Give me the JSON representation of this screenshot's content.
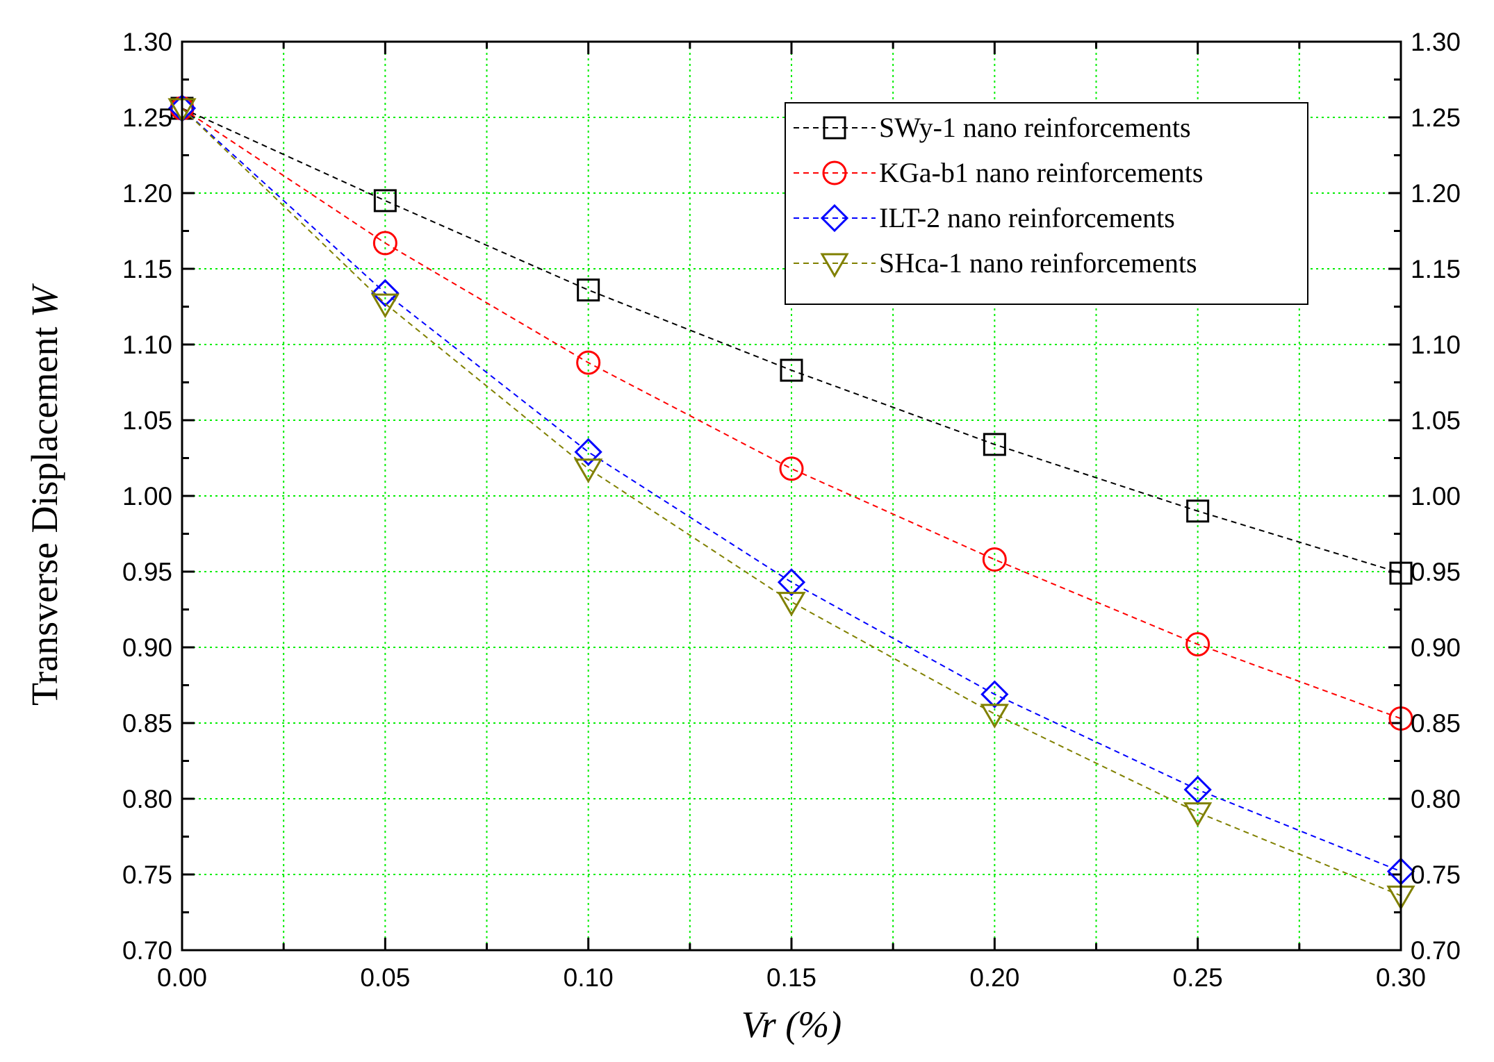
{
  "chart_data": {
    "type": "line",
    "title": "",
    "xlabel": "Vr (%)",
    "ylabel": "Transverse Displacement W",
    "ylabel_main": "Transverse Displacement ",
    "ylabel_var": "W",
    "xlabel_var": "Vr",
    "xlabel_unit": " (%)",
    "xlim": [
      0.0,
      0.3
    ],
    "ylim": [
      0.7,
      1.3
    ],
    "x_ticks": [
      "0.00",
      "0.05",
      "0.10",
      "0.15",
      "0.20",
      "0.25",
      "0.30"
    ],
    "y_ticks": [
      "0.70",
      "0.75",
      "0.80",
      "0.85",
      "0.90",
      "0.95",
      "1.00",
      "1.05",
      "1.10",
      "1.15",
      "1.20",
      "1.25",
      "1.30"
    ],
    "grid": true,
    "legend_position": "top-right",
    "x": [
      0.0,
      0.05,
      0.1,
      0.15,
      0.2,
      0.25,
      0.3
    ],
    "series": [
      {
        "name": "SWy-1 nano reinforcements",
        "marker": "square",
        "color": "#000000",
        "values": [
          1.256,
          1.195,
          1.136,
          1.083,
          1.034,
          0.99,
          0.949
        ]
      },
      {
        "name": "KGa-b1 nano reinforcements",
        "marker": "circle",
        "color": "#ff0000",
        "values": [
          1.256,
          1.167,
          1.088,
          1.018,
          0.958,
          0.902,
          0.853
        ]
      },
      {
        "name": "ILT-2 nano reinforcements",
        "marker": "diamond",
        "color": "#0000ff",
        "values": [
          1.256,
          1.134,
          1.029,
          0.943,
          0.869,
          0.806,
          0.752
        ]
      },
      {
        "name": "SHca-1 nano reinforcements",
        "marker": "triangle-down",
        "color": "#808000",
        "values": [
          1.256,
          1.127,
          1.018,
          0.93,
          0.856,
          0.791,
          0.736
        ]
      }
    ]
  }
}
